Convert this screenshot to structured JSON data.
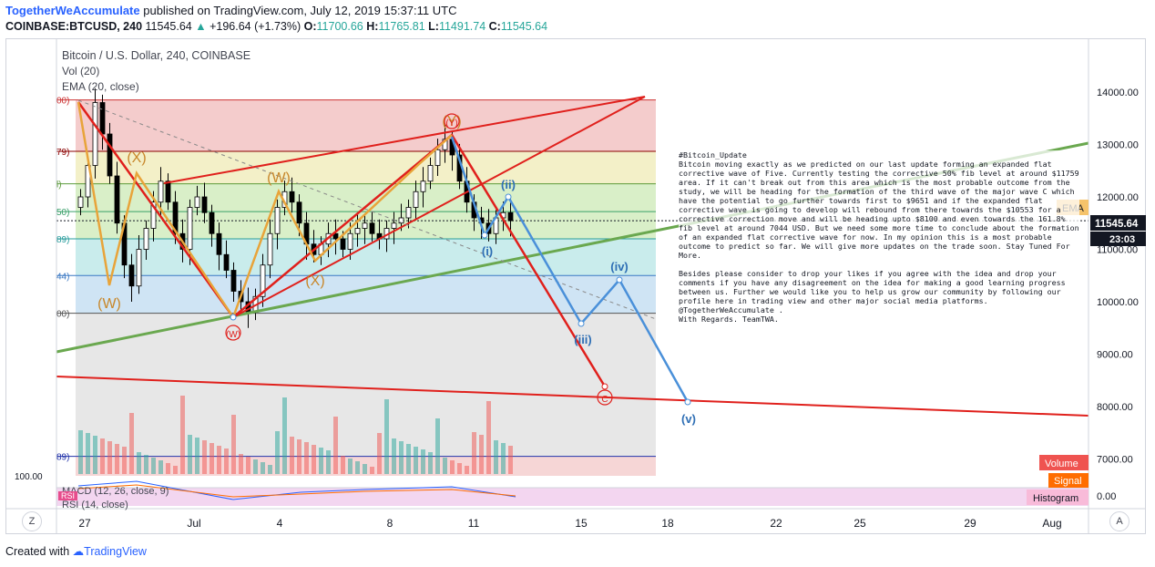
{
  "header": {
    "author": "TogetherWeAccumulate",
    "published": "published on TradingView.com, July 12, 2019 15:37:11 UTC",
    "symbol": "COINBASE:BTCUSD, 240",
    "last": "11545.64",
    "change": "+196.64 (+1.73%)",
    "open_label": "O:",
    "open": "11700.66",
    "high_label": "H:",
    "high": "11765.81",
    "low_label": "L:",
    "low": "11491.74",
    "close_label": "C:",
    "close": "11545.64"
  },
  "legend": {
    "title": "Bitcoin / U.S. Dollar, 240, COINBASE",
    "vol": "Vol (20)",
    "ema": "EMA (20, close)",
    "macd": "MACD (12, 26, close, 9)",
    "rsi": "RSI (14, close)",
    "rsi_badge": "RSI"
  },
  "footer": {
    "created": "Created with",
    "brand": "TradingView"
  },
  "buttons": {
    "zoom": "Z",
    "auto": "A"
  },
  "note": "#Bitcoin_Update\nBitcoin moving exactly as we predicted on our last update forming an expanded flat corrective wave of Five. Currently testing the corrective 50% fib level at around $11759 area. If it can't break out from this area which is the most probable outcome from the study, we will be heading for the formation of the third wave of the major wave C which have the potential to go further towards first to $9651 and if the expanded flat corrective wave is going to develop will rebound from there towards the $10553 for a corrective correction move and will be heading upto $8100 and even towards the 161.8% fib level at around 7044 USD. But we need some more time to conclude about the formation of an expanded flat corrective wave for now. In my opinion this is a most probable outcome to predict so far. We will give more updates on the trade soon. Stay Tuned For More.\n\nBesides please consider to drop your likes if you agree with the idea and drop your comments if you have any disagreement on the idea for making a good learning progress between us. Further we would like you to help us grow our community by following our profile here in trading view and other major social media platforms. @TogetherWeAccumulate .\nWith Regards. TeamTWA.",
  "price_axis": {
    "ticks": [
      "14000.00",
      "13000.00",
      "12000.00",
      "11000.00",
      "10000.00",
      "9000.00",
      "8000.00",
      "7000.00"
    ],
    "last_price": "11545.64",
    "countdown": "23:03",
    "ema_badge": "EMA",
    "volume_badge": "Volume",
    "signal_badge": "Signal",
    "histogram_badge": "Histogram",
    "macd_tick": "0.00",
    "left_tick": "100.00"
  },
  "fib_labels": [
    "00)",
    "79)",
    "l)",
    "50)",
    "89)",
    "44)",
    "00)",
    "89)"
  ],
  "wave_labels": {
    "orange": [
      "(X)",
      "(W)",
      "(W)",
      "(X)",
      "(Y)"
    ],
    "red": [
      "(W)",
      "(Y)",
      "C"
    ],
    "blue": [
      "(i)",
      "(ii)",
      "(iii)",
      "(iv)",
      "(v)"
    ]
  },
  "colors": {
    "up": "#26a69a",
    "down": "#ef5350",
    "accent": "#2962ff",
    "wave_red": "#e0201c",
    "wave_orange": "#e8a43a",
    "wave_blue": "#4a90d9",
    "trend_green": "#6aa84f"
  },
  "chart_data": {
    "type": "candlestick",
    "title": "Bitcoin / U.S. Dollar, 240, COINBASE",
    "x_ticks": [
      "27",
      "Jul",
      "4",
      "8",
      "11",
      "15",
      "18",
      "22",
      "25",
      "29",
      "Aug"
    ],
    "ylim": [
      6600,
      14900
    ],
    "y_ticks": [
      7000,
      8000,
      9000,
      10000,
      11000,
      12000,
      13000,
      14000
    ],
    "close_series": [
      12000,
      12600,
      13800,
      13200,
      12400,
      11500,
      10700,
      10300,
      11000,
      11400,
      11900,
      12300,
      11900,
      11300,
      11000,
      11800,
      12000,
      11700,
      11300,
      10900,
      10600,
      10200,
      10000,
      9800,
      10100,
      10700,
      11300,
      11800,
      12100,
      11900,
      11500,
      11100,
      10900,
      11100,
      11300,
      11200,
      11000,
      11300,
      11400,
      11500,
      11300,
      11200,
      11400,
      11500,
      11600,
      11800,
      12100,
      12300,
      12600,
      12900,
      13100,
      12800,
      12300,
      11900,
      11600,
      11500,
      11300,
      11600,
      11700,
      11545.64
    ],
    "fib_levels": [
      13850,
      12870,
      12250,
      11720,
      11200,
      10500,
      9780,
      7050
    ],
    "fib_zones": [
      "red",
      "yellow",
      "green",
      "green",
      "teal",
      "blue",
      "grey",
      "purple"
    ],
    "wave_points": {
      "blue_projection": [
        [
          11545,
          "11 Jul"
        ],
        [
          9651,
          "14 Jul"
        ],
        [
          10553,
          "16 Jul"
        ],
        [
          8100,
          "19 Jul"
        ]
      ],
      "red_projection_end": 8400
    },
    "annotations": [
      "(i)",
      "(ii)",
      "(iii)",
      "(iv)",
      "(v)",
      "C",
      "(W)",
      "(X)",
      "(Y)"
    ]
  }
}
